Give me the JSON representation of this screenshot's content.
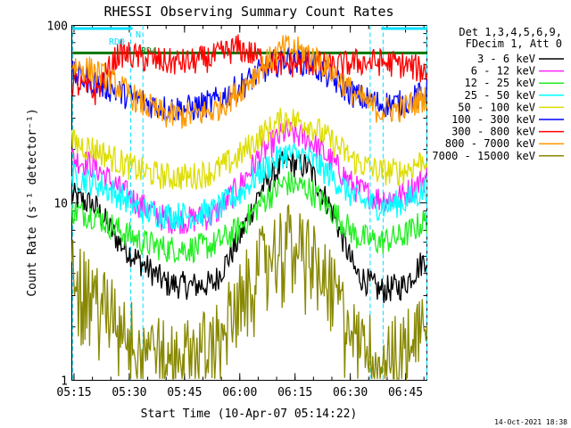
{
  "chart_data": {
    "type": "line",
    "title": "RHESSI Observing Summary Count Rates",
    "xlabel": "Start Time (10-Apr-07 05:14:22)",
    "ylabel": "Count Rate (s⁻¹ detector⁻¹)",
    "y_scale": "log",
    "ylim": [
      1,
      100
    ],
    "xlim_minutes": [
      0,
      96.4
    ],
    "x_ticks": [
      {
        "label": "05:15",
        "minute": 0.6
      },
      {
        "label": "05:30",
        "minute": 15.6
      },
      {
        "label": "05:45",
        "minute": 30.6
      },
      {
        "label": "06:00",
        "minute": 45.6
      },
      {
        "label": "06:15",
        "minute": 60.6
      },
      {
        "label": "06:30",
        "minute": 75.6
      },
      {
        "label": "06:45",
        "minute": 90.6
      }
    ],
    "y_ticks": [
      {
        "label": "1",
        "value": 1
      },
      {
        "label": "10",
        "value": 10
      },
      {
        "label": "100",
        "value": 100
      }
    ],
    "legend_header": [
      "Det 1,3,4,5,6,9,",
      "FDecim 1, Att 0"
    ],
    "legend_placement": "right",
    "timestamp": "14-Oct-2021 18:38",
    "annotations": [
      {
        "label": "RD0",
        "color": "#00e0ff"
      },
      {
        "label": "N",
        "color": "#00e0ff"
      },
      {
        "label": "RD4",
        "color": "#007700"
      }
    ],
    "vertical_markers_minutes": [
      0.3,
      16.0,
      19.3,
      81.0,
      84.5,
      98.5
    ],
    "gap_bars": [
      {
        "color": "#00e0ff",
        "y": 96,
        "x_start": 0.3,
        "x_end": 16.5
      },
      {
        "color": "#00e0ff",
        "y": 96,
        "x_start": 84.0,
        "x_end": 98.5
      },
      {
        "color": "#007700",
        "y": 70,
        "x_start": 0.3,
        "x_end": 98.5
      }
    ],
    "series": [
      {
        "name": "3 - 6 keV",
        "color": "#000000",
        "values": [
          11,
          9.5,
          6,
          4.5,
          3.5,
          3.4,
          3.5,
          6,
          12,
          17,
          16,
          9,
          4,
          3.2,
          3.4,
          5
        ]
      },
      {
        "name": "6 - 12 keV",
        "color": "#ff22ff",
        "values": [
          18,
          16,
          12,
          9.5,
          8,
          8,
          8.5,
          12,
          19,
          25,
          23,
          17,
          12,
          10.5,
          11,
          14
        ]
      },
      {
        "name": "12 - 25 keV",
        "color": "#22ee22",
        "values": [
          9,
          8.5,
          7,
          6,
          5.5,
          5.5,
          5.8,
          7,
          10,
          13,
          12,
          9,
          6.5,
          6,
          6.5,
          8
        ]
      },
      {
        "name": "25 - 50 keV",
        "color": "#00ffff",
        "values": [
          14,
          13,
          11,
          9,
          8.5,
          8.5,
          9,
          11,
          15,
          19,
          18,
          14,
          10.5,
          9.5,
          10,
          12
        ]
      },
      {
        "name": "50 - 100 keV",
        "color": "#dddd00",
        "values": [
          22,
          20,
          17,
          15,
          14,
          14,
          15,
          18,
          24,
          30,
          28,
          22,
          17,
          15,
          15,
          18
        ]
      },
      {
        "name": "100 - 300 keV",
        "color": "#0000ff",
        "values": [
          53,
          48,
          42,
          37,
          34,
          34,
          37,
          44,
          55,
          65,
          62,
          50,
          40,
          36,
          36,
          42
        ]
      },
      {
        "name": "300 - 800 keV",
        "color": "#ff0000",
        "values": [
          48,
          42,
          70,
          65,
          62,
          62,
          66,
          75,
          65,
          60,
          62,
          58,
          62,
          62,
          60,
          55
        ]
      },
      {
        "name": "800 - 7000 keV",
        "color": "#ff9900",
        "values": [
          60,
          55,
          45,
          36,
          31,
          31,
          33,
          42,
          58,
          75,
          70,
          55,
          40,
          33,
          34,
          40
        ]
      },
      {
        "name": "7000 - 15000 keV",
        "color": "#888800",
        "values": [
          4.5,
          3.5,
          2.2,
          1.7,
          1.5,
          1.5,
          1.8,
          3,
          5,
          6.8,
          6,
          3.5,
          1.8,
          1.5,
          1.6,
          2.5
        ]
      }
    ]
  }
}
